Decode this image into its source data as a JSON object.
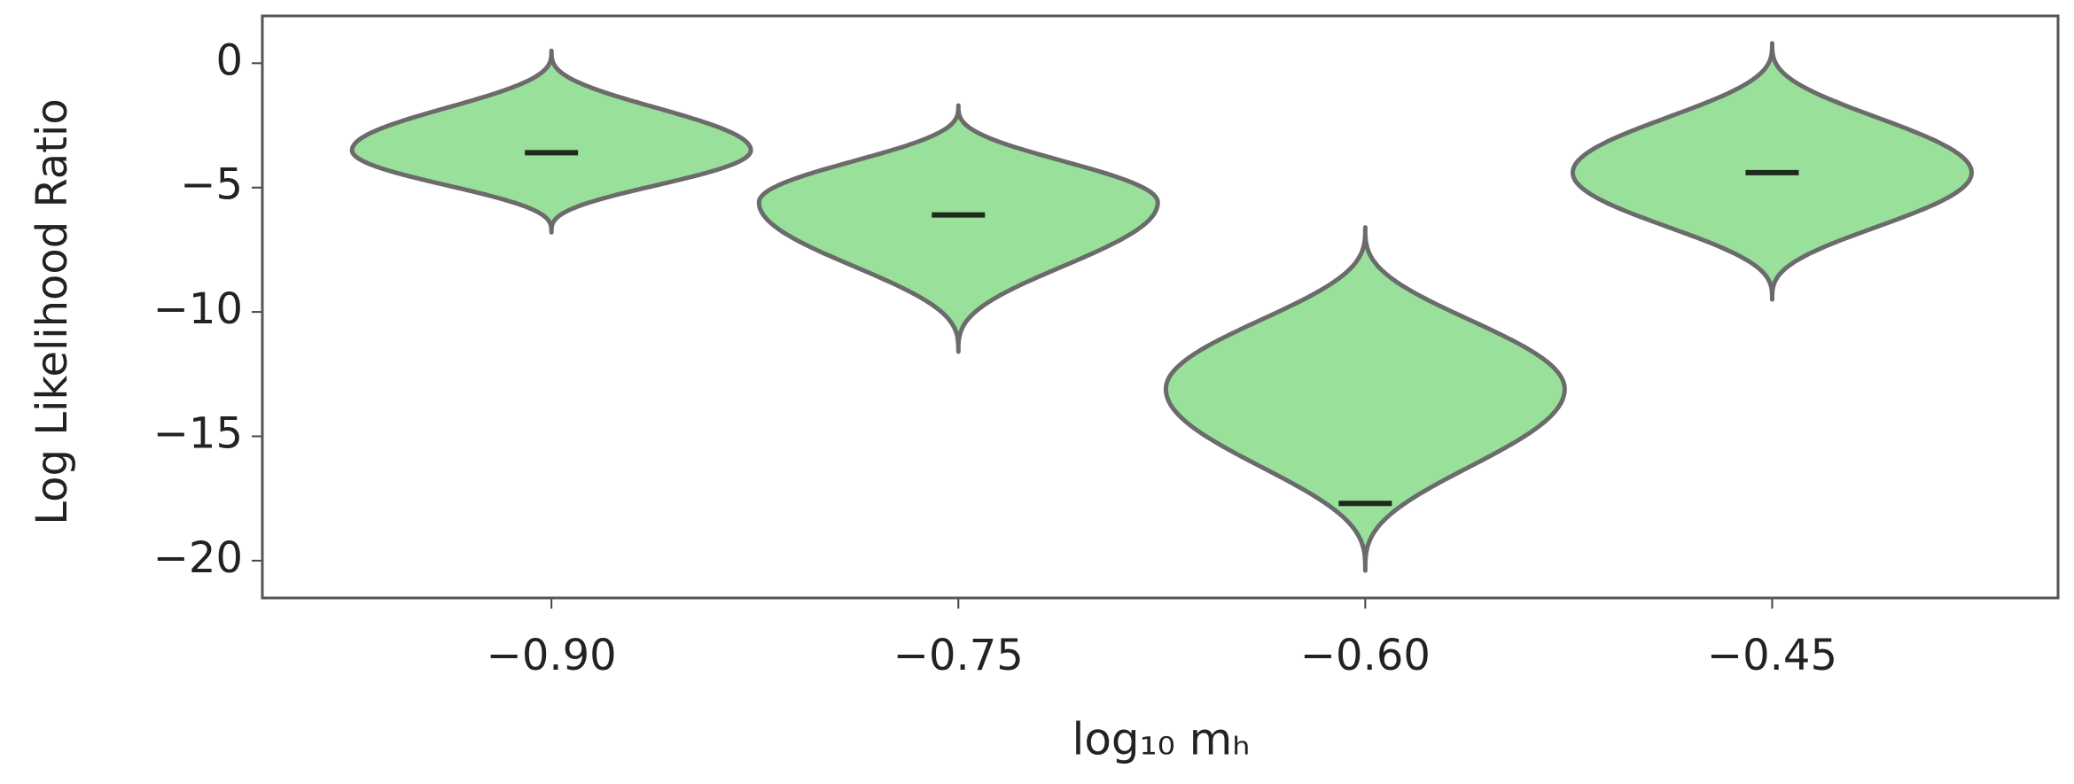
{
  "chart_data": {
    "type": "violin",
    "x_label": "log₁₀ mₕ",
    "y_label": "Log Likelihood Ratio",
    "categories": [
      "−0.90",
      "−0.75",
      "−0.60",
      "−0.45"
    ],
    "color": "#99e09a",
    "series": [
      {
        "min": -6.8,
        "max": 0.5,
        "mode": -3.5,
        "median": -3.6
      },
      {
        "min": -11.6,
        "max": -1.7,
        "mode": -5.6,
        "median": -6.1
      },
      {
        "min": -20.4,
        "max": -6.6,
        "mode": -13.1,
        "median": -17.7
      },
      {
        "min": -9.5,
        "max": 0.8,
        "mode": -4.4,
        "median": -4.4
      }
    ],
    "ylim": [
      -21.5,
      1.9
    ],
    "yticks": [
      {
        "value": 0,
        "label": "0"
      },
      {
        "value": -5,
        "label": "−5"
      },
      {
        "value": -10,
        "label": "−10"
      },
      {
        "value": -15,
        "label": "−15"
      },
      {
        "value": -20,
        "label": "−20"
      }
    ]
  }
}
